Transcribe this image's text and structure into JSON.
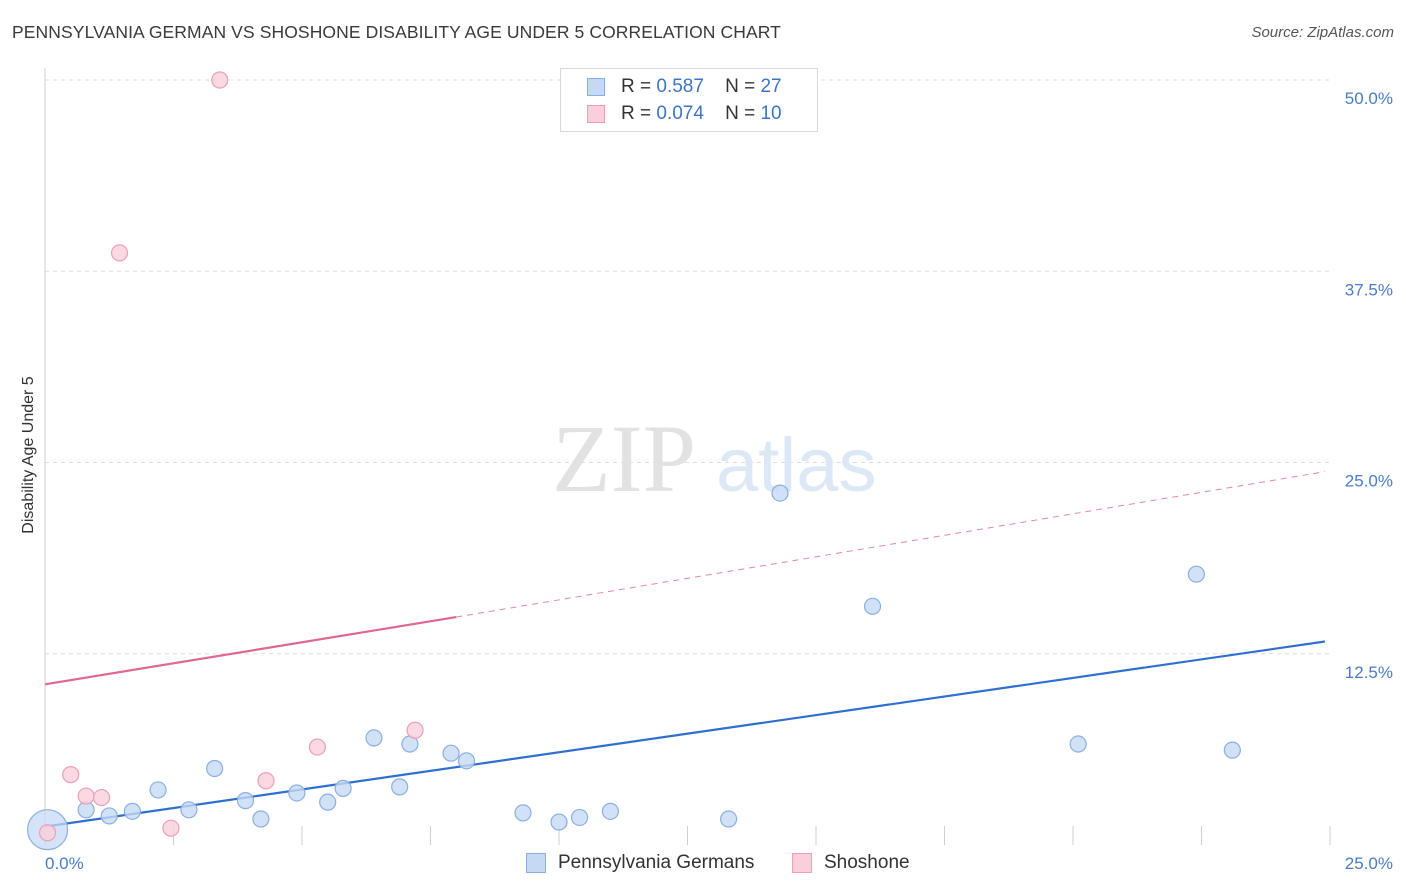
{
  "header": {
    "title": "PENNSYLVANIA GERMAN VS SHOSHONE DISABILITY AGE UNDER 5 CORRELATION CHART",
    "source": "Source: ZipAtlas.com"
  },
  "colors": {
    "blue_fill": "#c5d9f4",
    "blue_stroke": "#8ab0e0",
    "blue_line": "#2f6fd0",
    "pink_fill": "#f9cfdb",
    "pink_stroke": "#ee9fb5",
    "pink_line": "#e0688f",
    "tick_text": "#4a7cc4"
  },
  "watermark": {
    "zip": "ZIP",
    "atlas": "atlas"
  },
  "legend": {
    "series": [
      {
        "r_label": "R =",
        "r_value": "0.587",
        "n_label": "N =",
        "n_value": "27"
      },
      {
        "r_label": "R =",
        "r_value": "0.074",
        "n_label": "N =",
        "n_value": "10"
      }
    ]
  },
  "chart_data": {
    "type": "scatter",
    "title": "PENNSYLVANIA GERMAN VS SHOSHONE DISABILITY AGE UNDER 5 CORRELATION CHART",
    "xlabel": "",
    "ylabel": "Disability Age Under 5",
    "xlim": [
      0,
      25
    ],
    "ylim": [
      0,
      50
    ],
    "x_tick_labels": [
      "0.0%",
      "25.0%"
    ],
    "y_ticks": [
      12.5,
      25.0,
      37.5,
      50.0
    ],
    "y_tick_labels": [
      "12.5%",
      "25.0%",
      "37.5%",
      "50.0%"
    ],
    "grid": true,
    "series": [
      {
        "name": "Pennsylvania Germans",
        "color": "#c5d9f4",
        "points": [
          {
            "x": 0.05,
            "y": 1.0,
            "big": true
          },
          {
            "x": 0.8,
            "y": 2.3
          },
          {
            "x": 1.25,
            "y": 1.9
          },
          {
            "x": 1.7,
            "y": 2.2
          },
          {
            "x": 2.2,
            "y": 3.6
          },
          {
            "x": 2.8,
            "y": 2.3
          },
          {
            "x": 3.3,
            "y": 5.0
          },
          {
            "x": 3.9,
            "y": 2.9
          },
          {
            "x": 4.2,
            "y": 1.7
          },
          {
            "x": 4.9,
            "y": 3.4
          },
          {
            "x": 5.5,
            "y": 2.8
          },
          {
            "x": 5.8,
            "y": 3.7
          },
          {
            "x": 6.4,
            "y": 7.0
          },
          {
            "x": 6.9,
            "y": 3.8
          },
          {
            "x": 7.1,
            "y": 6.6
          },
          {
            "x": 7.9,
            "y": 6.0
          },
          {
            "x": 8.2,
            "y": 5.5
          },
          {
            "x": 9.3,
            "y": 2.1
          },
          {
            "x": 10.0,
            "y": 1.5
          },
          {
            "x": 10.4,
            "y": 1.8
          },
          {
            "x": 11.0,
            "y": 2.2
          },
          {
            "x": 13.3,
            "y": 1.7
          },
          {
            "x": 14.3,
            "y": 23.0
          },
          {
            "x": 16.1,
            "y": 15.6
          },
          {
            "x": 20.1,
            "y": 6.6
          },
          {
            "x": 22.4,
            "y": 17.7
          },
          {
            "x": 23.1,
            "y": 6.2
          }
        ],
        "trend": {
          "x0": 0,
          "y0": 1.2,
          "x1": 24.9,
          "y1": 13.3,
          "style": "solid"
        }
      },
      {
        "name": "Shoshone",
        "color": "#f9cfdb",
        "points": [
          {
            "x": 0.05,
            "y": 0.8
          },
          {
            "x": 0.5,
            "y": 4.6
          },
          {
            "x": 0.8,
            "y": 3.2
          },
          {
            "x": 1.1,
            "y": 3.1
          },
          {
            "x": 1.45,
            "y": 38.7
          },
          {
            "x": 2.45,
            "y": 1.1
          },
          {
            "x": 3.4,
            "y": 50.0
          },
          {
            "x": 4.3,
            "y": 4.2
          },
          {
            "x": 5.3,
            "y": 6.4
          },
          {
            "x": 7.2,
            "y": 7.5
          }
        ],
        "trend": {
          "x0": 0,
          "y0": 10.5,
          "x1": 8.0,
          "y1": 14.9,
          "dash_to_x": 24.9,
          "dash_to_y": 24.4
        }
      }
    ]
  }
}
